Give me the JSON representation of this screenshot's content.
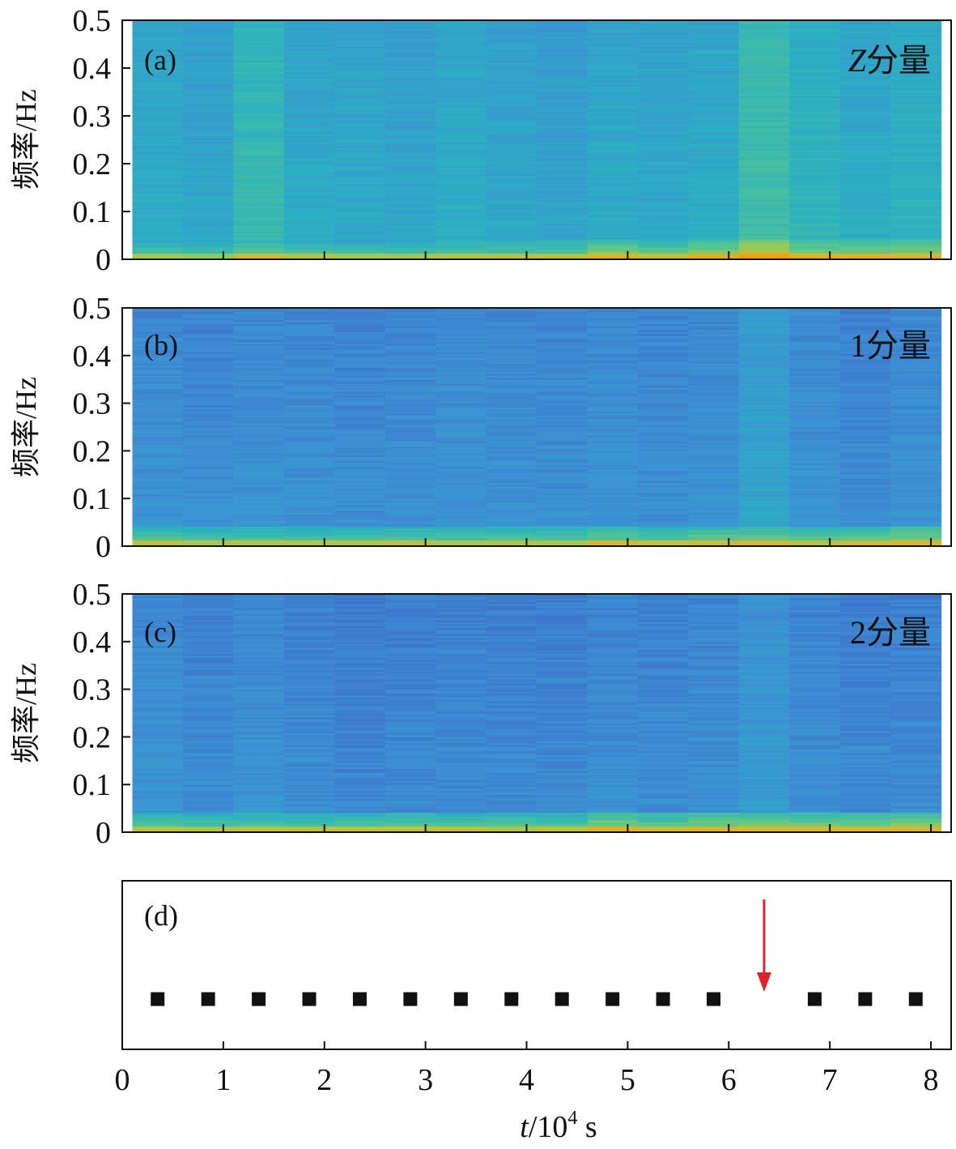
{
  "chart_data": [
    {
      "panel": "(a)",
      "type": "heatmap",
      "component_label": "Z分量",
      "component_prefix": "Z",
      "component_suffix": "分量",
      "ylabel": "频率/Hz",
      "ylim": [
        0,
        0.5
      ],
      "yticks": [
        "0",
        "0.1",
        "0.2",
        "0.3",
        "0.4",
        "0.5"
      ],
      "y_tick_values": [
        0,
        0.1,
        0.2,
        0.3,
        0.4,
        0.5
      ],
      "xlim": [
        0,
        8.2
      ],
      "window_width": 0.5,
      "window_starts": [
        0.1,
        0.6,
        1.1,
        1.6,
        2.1,
        2.6,
        3.1,
        3.6,
        4.1,
        4.6,
        5.1,
        5.6,
        6.1,
        6.6,
        7.1,
        7.6
      ],
      "base_level": [
        0.33,
        0.3,
        0.42,
        0.32,
        0.31,
        0.29,
        0.33,
        0.3,
        0.28,
        0.32,
        0.31,
        0.33,
        0.46,
        0.38,
        0.33,
        0.36
      ],
      "low_freq_level": [
        0.48,
        0.45,
        0.55,
        0.48,
        0.45,
        0.46,
        0.5,
        0.5,
        0.52,
        0.62,
        0.55,
        0.64,
        0.78,
        0.62,
        0.6,
        0.62
      ],
      "colorscale": [
        "#3e64c4",
        "#3d8fd4",
        "#2bb0c2",
        "#4cc19a",
        "#8fcc5c",
        "#d8b82e",
        "#e8a21a"
      ]
    },
    {
      "panel": "(b)",
      "type": "heatmap",
      "component_label": "1分量",
      "component_prefix": "",
      "component_suffix": "1分量",
      "ylabel": "频率/Hz",
      "ylim": [
        0,
        0.5
      ],
      "yticks": [
        "0",
        "0.1",
        "0.2",
        "0.3",
        "0.4",
        "0.5"
      ],
      "y_tick_values": [
        0,
        0.1,
        0.2,
        0.3,
        0.4,
        0.5
      ],
      "xlim": [
        0,
        8.2
      ],
      "window_width": 0.5,
      "window_starts": [
        0.1,
        0.6,
        1.1,
        1.6,
        2.1,
        2.6,
        3.1,
        3.6,
        4.1,
        4.6,
        5.1,
        5.6,
        6.1,
        6.6,
        7.1,
        7.6
      ],
      "base_level": [
        0.2,
        0.18,
        0.2,
        0.19,
        0.18,
        0.19,
        0.2,
        0.19,
        0.19,
        0.2,
        0.18,
        0.2,
        0.28,
        0.2,
        0.17,
        0.2
      ],
      "low_freq_level": [
        0.52,
        0.5,
        0.5,
        0.5,
        0.5,
        0.52,
        0.5,
        0.52,
        0.52,
        0.58,
        0.54,
        0.58,
        0.58,
        0.56,
        0.56,
        0.6
      ],
      "colorscale": [
        "#3e64c4",
        "#3d8fd4",
        "#2bb0c2",
        "#4cc19a",
        "#8fcc5c",
        "#d8b82e",
        "#e8a21a"
      ]
    },
    {
      "panel": "(c)",
      "type": "heatmap",
      "component_label": "2分量",
      "component_prefix": "",
      "component_suffix": "2分量",
      "ylabel": "频率/Hz",
      "ylim": [
        0,
        0.5
      ],
      "yticks": [
        "0",
        "0.1",
        "0.2",
        "0.3",
        "0.4",
        "0.5"
      ],
      "y_tick_values": [
        0,
        0.1,
        0.2,
        0.3,
        0.4,
        0.5
      ],
      "xlim": [
        0,
        8.2
      ],
      "window_width": 0.5,
      "window_starts": [
        0.1,
        0.6,
        1.1,
        1.6,
        2.1,
        2.6,
        3.1,
        3.6,
        4.1,
        4.6,
        5.1,
        5.6,
        6.1,
        6.6,
        7.1,
        7.6
      ],
      "base_level": [
        0.2,
        0.17,
        0.2,
        0.17,
        0.15,
        0.16,
        0.17,
        0.16,
        0.16,
        0.18,
        0.17,
        0.18,
        0.24,
        0.18,
        0.16,
        0.17
      ],
      "low_freq_level": [
        0.52,
        0.5,
        0.5,
        0.5,
        0.5,
        0.52,
        0.5,
        0.52,
        0.52,
        0.62,
        0.56,
        0.62,
        0.6,
        0.6,
        0.6,
        0.62
      ],
      "colorscale": [
        "#3e64c4",
        "#3d8fd4",
        "#2bb0c2",
        "#4cc19a",
        "#8fcc5c",
        "#d8b82e",
        "#e8a21a"
      ]
    },
    {
      "panel": "(d)",
      "type": "scatter",
      "marker": "square",
      "marker_color": "#111111",
      "x": [
        0.35,
        0.85,
        1.35,
        1.85,
        2.35,
        2.85,
        3.35,
        3.85,
        4.35,
        4.85,
        5.35,
        5.85,
        6.85,
        7.35,
        7.85
      ],
      "missing_x": 6.35,
      "arrow_color": "#e3212b",
      "xlabel": "t/10⁴ s",
      "xlabel_var": "t",
      "xlabel_rest": "/10",
      "xlabel_exp": "4",
      "xlabel_unit": " s",
      "xlim": [
        0,
        8.2
      ],
      "xticks": [
        "0",
        "1",
        "2",
        "3",
        "4",
        "5",
        "6",
        "7",
        "8"
      ],
      "x_tick_values": [
        0,
        1,
        2,
        3,
        4,
        5,
        6,
        7,
        8
      ]
    }
  ]
}
